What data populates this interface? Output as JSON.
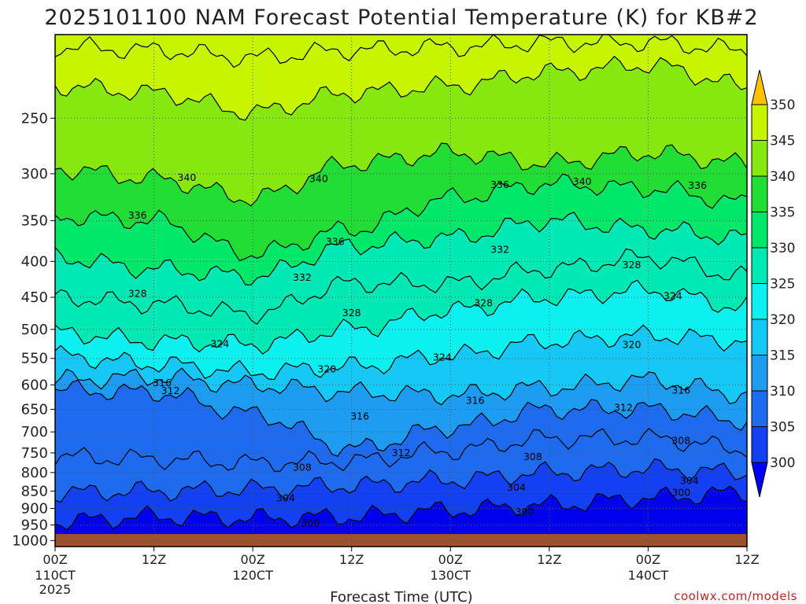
{
  "chart_data": {
    "type": "heatmap",
    "title": "2025101100 NAM Forecast Potential Temperature (K) for KB#2",
    "xlabel": "Forecast Time (UTC)",
    "ylabel": "",
    "credit": "coolwx.com/models",
    "units": "K",
    "x_ticks": [
      {
        "hour": 0,
        "label": "00Z",
        "sub": "110CT",
        "sub2": "2025"
      },
      {
        "hour": 12,
        "label": "12Z"
      },
      {
        "hour": 24,
        "label": "00Z",
        "sub": "120CT"
      },
      {
        "hour": 36,
        "label": "12Z"
      },
      {
        "hour": 48,
        "label": "00Z",
        "sub": "130CT"
      },
      {
        "hour": 60,
        "label": "12Z"
      },
      {
        "hour": 72,
        "label": "00Z",
        "sub": "140CT"
      },
      {
        "hour": 84,
        "label": "12Z"
      }
    ],
    "xlim": [
      0,
      84
    ],
    "pressure_ticks": [
      250,
      300,
      350,
      400,
      450,
      500,
      550,
      600,
      650,
      700,
      750,
      800,
      850,
      900,
      950,
      1000
    ],
    "ylim_hpa": [
      1020,
      190
    ],
    "y_scale": "log",
    "colorbar": {
      "levels": [
        300,
        305,
        310,
        315,
        320,
        325,
        330,
        335,
        340,
        345,
        350
      ],
      "colors": [
        "#0000ee",
        "#1240f2",
        "#1f6bf0",
        "#1d9cf2",
        "#16c8f5",
        "#0cf0f0",
        "#00e8b4",
        "#00e76a",
        "#21dd34",
        "#86e80e",
        "#c7f500",
        "#fff500",
        "#ffc100"
      ]
    },
    "contour_interval": 4,
    "contour_levels": [
      300,
      304,
      308,
      312,
      316,
      320,
      324,
      328,
      332,
      336,
      340,
      344,
      348
    ],
    "isentrope_pressure_hpa": {
      "hours": [
        0,
        12,
        24,
        36,
        48,
        60,
        72,
        84
      ],
      "theta_300": [
        940,
        925,
        930,
        925,
        905,
        890,
        870,
        855
      ],
      "theta_304": [
        855,
        850,
        845,
        835,
        820,
        800,
        790,
        800
      ],
      "theta_308": [
        760,
        765,
        775,
        770,
        745,
        715,
        715,
        740
      ],
      "theta_312": [
        610,
        615,
        660,
        740,
        690,
        650,
        650,
        675
      ],
      "theta_316": [
        590,
        585,
        600,
        615,
        620,
        605,
        590,
        620
      ],
      "theta_320": [
        545,
        560,
        575,
        565,
        545,
        520,
        510,
        520
      ],
      "theta_324": [
        505,
        520,
        525,
        500,
        470,
        450,
        440,
        465
      ],
      "theta_328": [
        450,
        460,
        475,
        430,
        430,
        410,
        395,
        420
      ],
      "theta_332": [
        395,
        410,
        420,
        380,
        370,
        350,
        360,
        370
      ],
      "theta_336": [
        345,
        350,
        390,
        360,
        325,
        310,
        315,
        330
      ],
      "theta_340": [
        295,
        305,
        325,
        290,
        280,
        290,
        280,
        290
      ],
      "theta_344": [
        225,
        230,
        245,
        230,
        225,
        215,
        210,
        225
      ],
      "theta_348": [
        198,
        200,
        205,
        200,
        198,
        195,
        195,
        200
      ]
    },
    "contour_labels": [
      {
        "hour": 16,
        "pressure": 304,
        "text": "340"
      },
      {
        "hour": 32,
        "pressure": 305,
        "text": "340"
      },
      {
        "hour": 64,
        "pressure": 308,
        "text": "340"
      },
      {
        "hour": 54,
        "pressure": 311,
        "text": "336"
      },
      {
        "hour": 78,
        "pressure": 312,
        "text": "336"
      },
      {
        "hour": 10,
        "pressure": 344,
        "text": "336"
      },
      {
        "hour": 34,
        "pressure": 375,
        "text": "336"
      },
      {
        "hour": 30,
        "pressure": 422,
        "text": "332"
      },
      {
        "hour": 54,
        "pressure": 385,
        "text": "332"
      },
      {
        "hour": 70,
        "pressure": 405,
        "text": "328"
      },
      {
        "hour": 10,
        "pressure": 445,
        "text": "328"
      },
      {
        "hour": 36,
        "pressure": 474,
        "text": "328"
      },
      {
        "hour": 52,
        "pressure": 459,
        "text": "328"
      },
      {
        "hour": 75,
        "pressure": 448,
        "text": "324"
      },
      {
        "hour": 20,
        "pressure": 525,
        "text": "324"
      },
      {
        "hour": 47,
        "pressure": 548,
        "text": "324"
      },
      {
        "hour": 70,
        "pressure": 526,
        "text": "320"
      },
      {
        "hour": 33,
        "pressure": 570,
        "text": "320"
      },
      {
        "hour": 13,
        "pressure": 596,
        "text": "316"
      },
      {
        "hour": 76,
        "pressure": 611,
        "text": "316"
      },
      {
        "hour": 51,
        "pressure": 632,
        "text": "316"
      },
      {
        "hour": 37,
        "pressure": 665,
        "text": "316"
      },
      {
        "hour": 14,
        "pressure": 612,
        "text": "312"
      },
      {
        "hour": 69,
        "pressure": 647,
        "text": "312"
      },
      {
        "hour": 42,
        "pressure": 750,
        "text": "312"
      },
      {
        "hour": 58,
        "pressure": 760,
        "text": "308"
      },
      {
        "hour": 30,
        "pressure": 787,
        "text": "308"
      },
      {
        "hour": 76,
        "pressure": 721,
        "text": "308"
      },
      {
        "hour": 56,
        "pressure": 840,
        "text": "304"
      },
      {
        "hour": 77,
        "pressure": 822,
        "text": "304"
      },
      {
        "hour": 28,
        "pressure": 870,
        "text": "304"
      },
      {
        "hour": 76,
        "pressure": 855,
        "text": "300"
      },
      {
        "hour": 57,
        "pressure": 910,
        "text": "300"
      },
      {
        "hour": 31,
        "pressure": 945,
        "text": "300"
      }
    ],
    "surface_pressure_hpa": 1020,
    "grid": true
  }
}
